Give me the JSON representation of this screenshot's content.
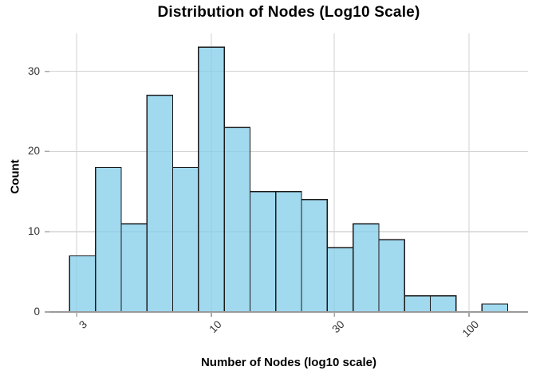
{
  "chart_data": {
    "type": "bar",
    "subtype": "histogram",
    "title": "Distribution of Nodes (Log10 Scale)",
    "xlabel": "Number of Nodes (log10 scale)",
    "ylabel": "Count",
    "x_scale": "log10",
    "grid": true,
    "legend": false,
    "x_domain_log10": [
      0.3715,
      2.2291
    ],
    "ylim": [
      0,
      34.72
    ],
    "bin_edges_log10": [
      0.45,
      0.55,
      0.65,
      0.75,
      0.85,
      0.95,
      1.05,
      1.15,
      1.25,
      1.35,
      1.45,
      1.55,
      1.65,
      1.75,
      1.85,
      1.95,
      2.05,
      2.15
    ],
    "bin_edges_approx": [
      2.8,
      3.5,
      4.5,
      5.6,
      7.1,
      8.9,
      11.2,
      14.1,
      17.8,
      22.4,
      28.2,
      35.5,
      44.7,
      56.2,
      70.8,
      89.1,
      112.2,
      141.3
    ],
    "counts": [
      7,
      18,
      11,
      27,
      18,
      33,
      23,
      15,
      15,
      14,
      8,
      11,
      9,
      2,
      2,
      0,
      1
    ],
    "x_ticks": [
      {
        "value": 3,
        "label": "3"
      },
      {
        "value": 10,
        "label": "10"
      },
      {
        "value": 30,
        "label": "30"
      },
      {
        "value": 100,
        "label": "100"
      }
    ],
    "y_ticks": [
      {
        "value": 0,
        "label": "0"
      },
      {
        "value": 10,
        "label": "10"
      },
      {
        "value": 20,
        "label": "20"
      },
      {
        "value": 30,
        "label": "30"
      }
    ],
    "colors": {
      "bar_fill": "#87CEEB",
      "bar_fill_alpha": 0.78,
      "bar_stroke": "#1a1a1a",
      "gridline": "#d2d2d2",
      "axis_line": "#9b9b9b",
      "tick_mark": "#a8a8a8",
      "title_text": "#000000",
      "tick_text": "#333333"
    }
  }
}
